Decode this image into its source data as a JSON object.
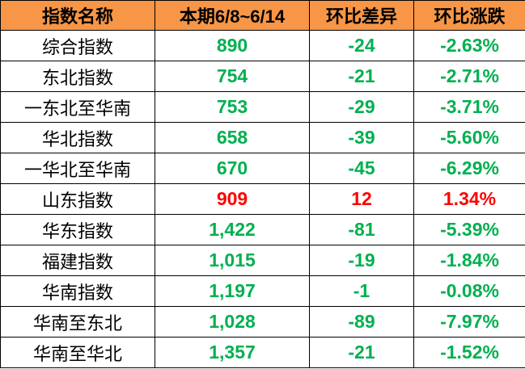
{
  "headers": [
    "指数名称",
    "本期6/8~6/14",
    "环比差异",
    "环比涨跌"
  ],
  "colors": {
    "header_bg": "#F79646",
    "down": "#00B050",
    "up": "#FF0000"
  },
  "rows": [
    {
      "name": "综合指数",
      "value": "890",
      "diff": "-24",
      "pct": "-2.63%",
      "trend": "down"
    },
    {
      "name": "东北指数",
      "value": "754",
      "diff": "-21",
      "pct": "-2.71%",
      "trend": "down"
    },
    {
      "name": "一东北至华南",
      "value": "753",
      "diff": "-29",
      "pct": "-3.71%",
      "trend": "down"
    },
    {
      "name": "华北指数",
      "value": "658",
      "diff": "-39",
      "pct": "-5.60%",
      "trend": "down"
    },
    {
      "name": "一华北至华南",
      "value": "670",
      "diff": "-45",
      "pct": "-6.29%",
      "trend": "down"
    },
    {
      "name": "山东指数",
      "value": "909",
      "diff": "12",
      "pct": "1.34%",
      "trend": "up"
    },
    {
      "name": "华东指数",
      "value": "1,422",
      "diff": "-81",
      "pct": "-5.39%",
      "trend": "down"
    },
    {
      "name": "福建指数",
      "value": "1,015",
      "diff": "-19",
      "pct": "-1.84%",
      "trend": "down"
    },
    {
      "name": "华南指数",
      "value": "1,197",
      "diff": "-1",
      "pct": "-0.08%",
      "trend": "down"
    },
    {
      "name": "华南至东北",
      "value": "1,028",
      "diff": "-89",
      "pct": "-7.97%",
      "trend": "down"
    },
    {
      "name": "华南至华北",
      "value": "1,357",
      "diff": "-21",
      "pct": "-1.52%",
      "trend": "down"
    }
  ]
}
